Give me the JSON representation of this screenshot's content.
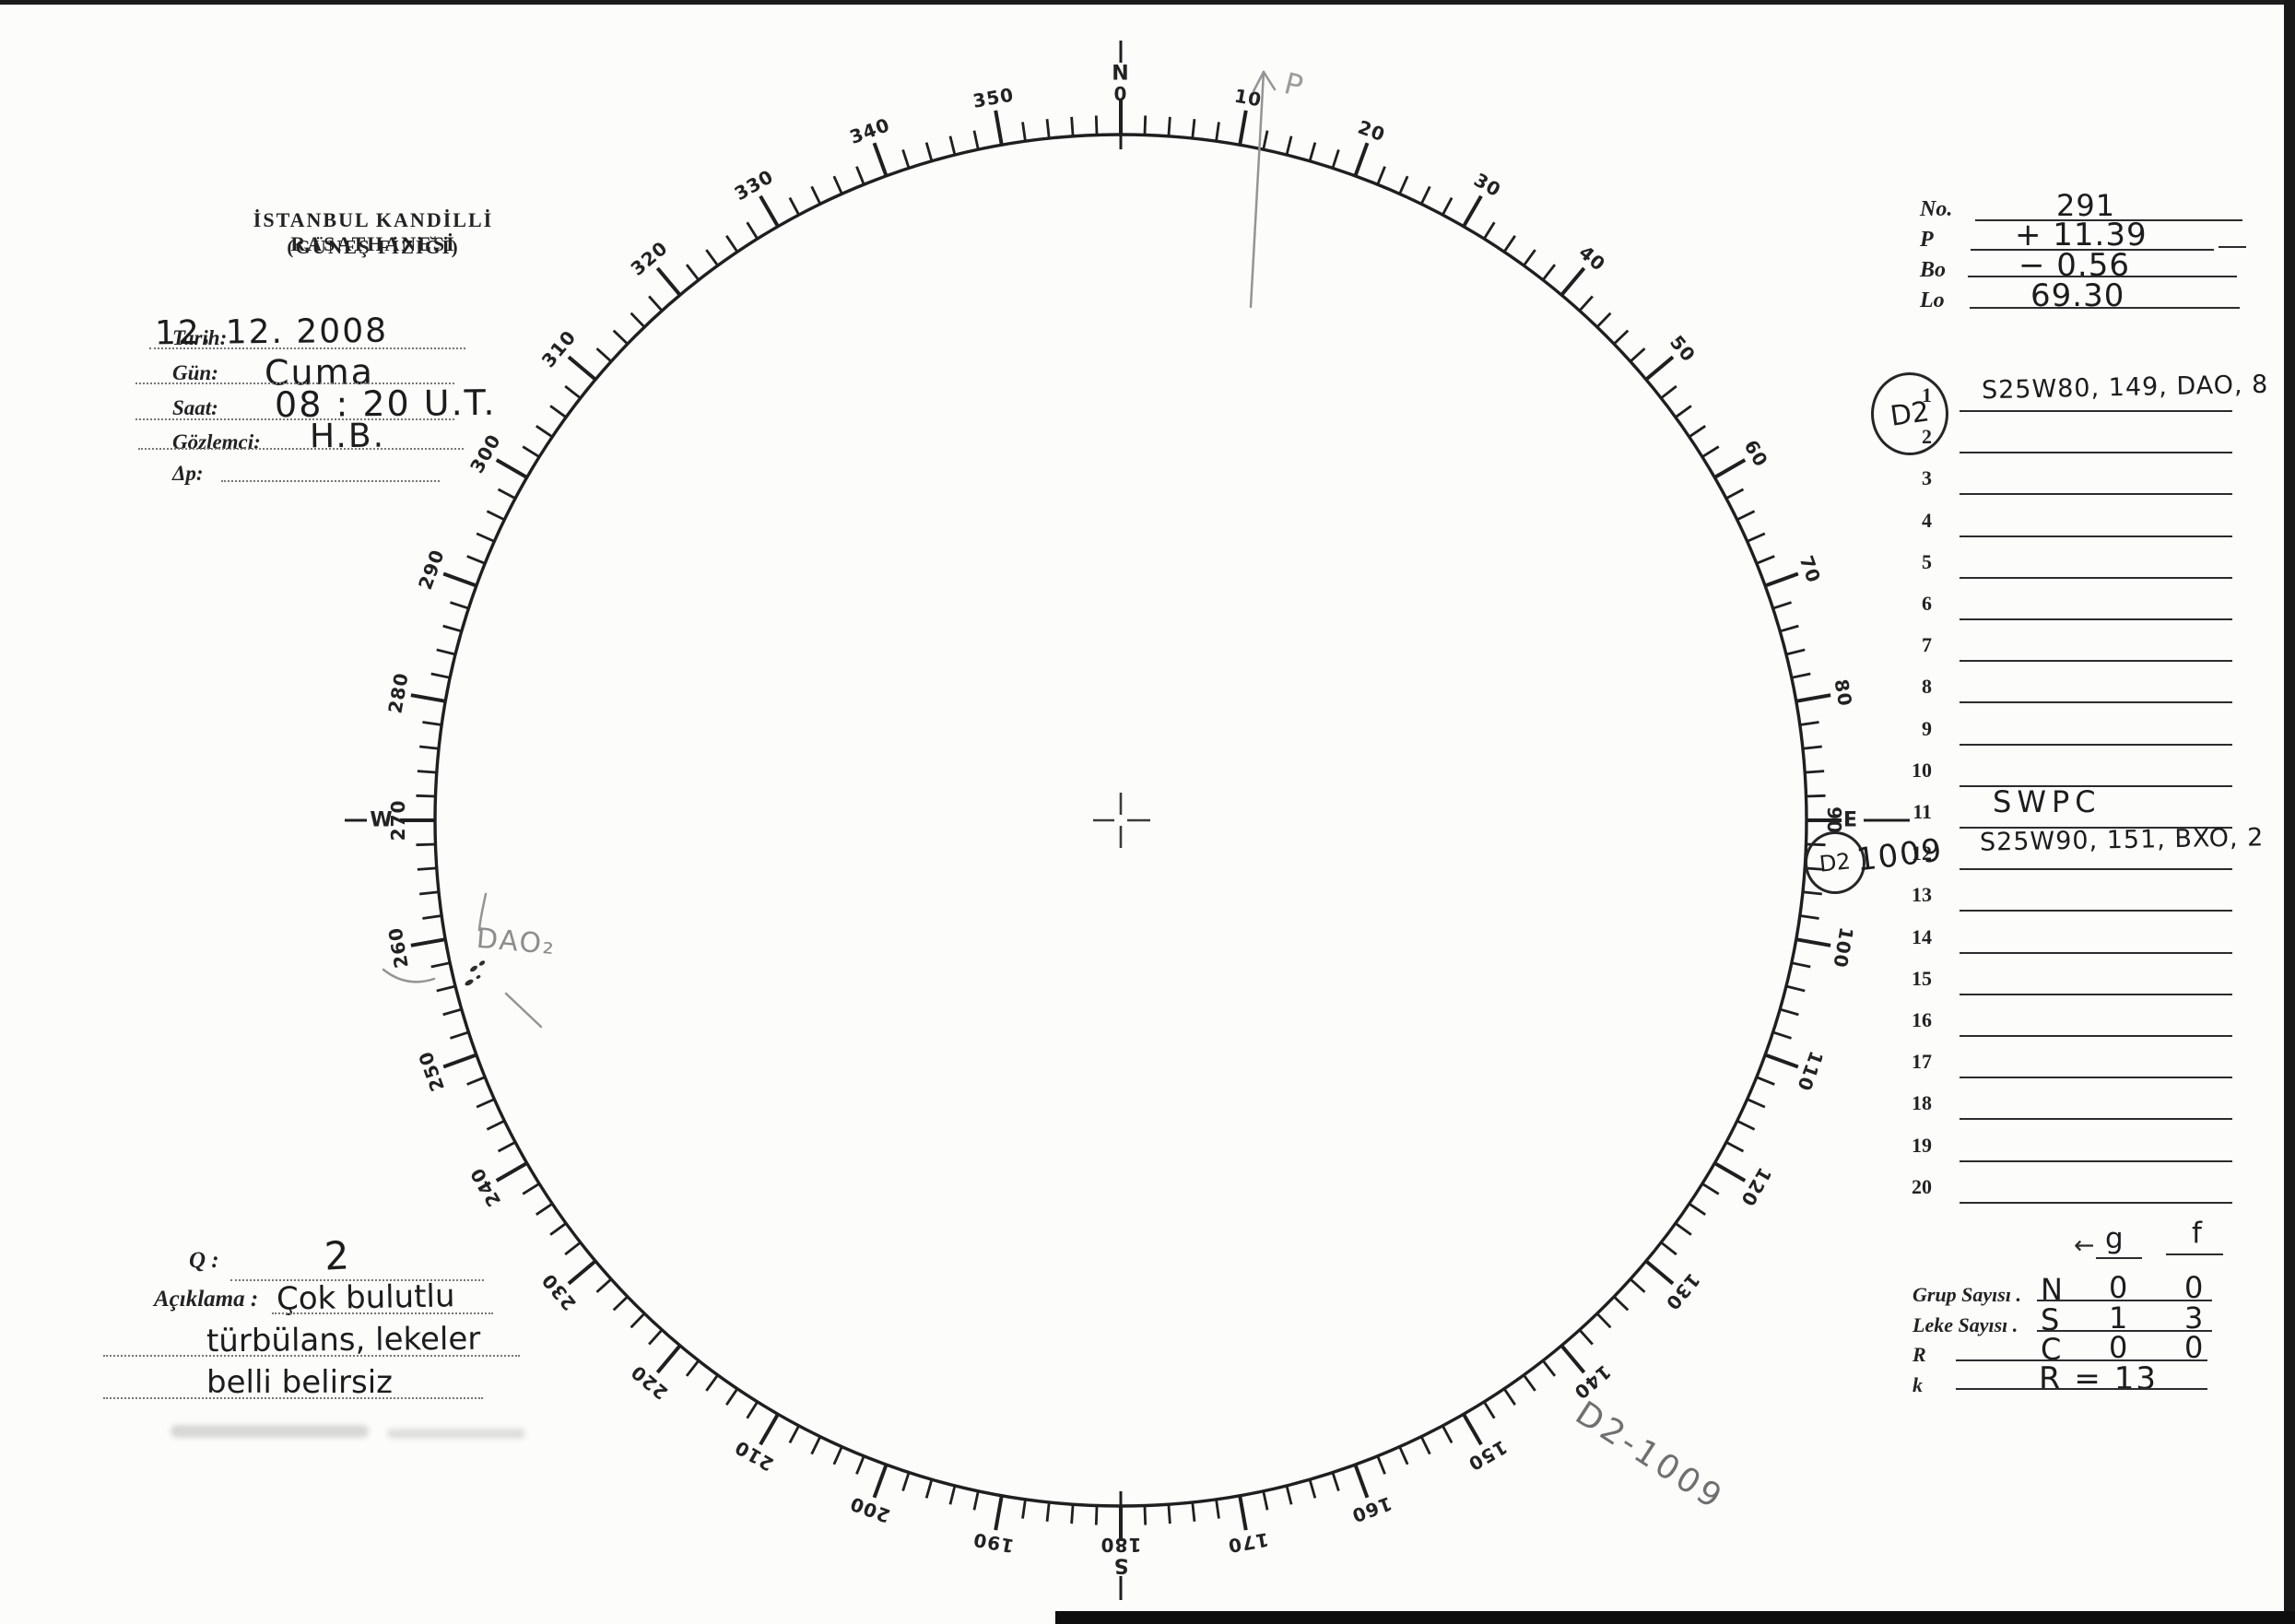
{
  "colors": {
    "paper": "#fcfcfa",
    "ink": "#1c1c1c",
    "print": "#222222",
    "pencil": "#8d8d8d"
  },
  "document": {
    "title_line1": "İSTANBUL KANDİLLİ RASATHANESİ",
    "title_line2": "(GÜNEŞ FİZİĞİ)"
  },
  "observation_fields": [
    {
      "label": "Tarih:",
      "value": "12. 12. 2008"
    },
    {
      "label": "Gün:",
      "value": "Cuma"
    },
    {
      "label": "Saat:",
      "value": "08 : 20  U.T."
    },
    {
      "label": "Gözlemci:",
      "value": "H.B."
    },
    {
      "label": "Δp:",
      "value": ""
    }
  ],
  "ephemeris": [
    {
      "label": "No.",
      "value": "291"
    },
    {
      "label": "P",
      "value": "+ 11.39"
    },
    {
      "label": "Bo",
      "value": "− 0.56"
    },
    {
      "label": "Lo",
      "value": "69.30"
    }
  ],
  "group_rows": [
    {
      "num": "1",
      "entry": "S25W80, 149, DAO, 8",
      "badge": "D2"
    },
    {
      "num": "2",
      "entry": ""
    },
    {
      "num": "3",
      "entry": ""
    },
    {
      "num": "4",
      "entry": ""
    },
    {
      "num": "5",
      "entry": ""
    },
    {
      "num": "6",
      "entry": ""
    },
    {
      "num": "7",
      "entry": ""
    },
    {
      "num": "8",
      "entry": ""
    },
    {
      "num": "9",
      "entry": ""
    },
    {
      "num": "10",
      "entry": ""
    },
    {
      "num": "11",
      "entry": "SWPC"
    },
    {
      "num": "12",
      "entry": "S25W90, 151, BXO, 2",
      "badge": "D2",
      "badge_note": "1009"
    },
    {
      "num": "13",
      "entry": ""
    },
    {
      "num": "14",
      "entry": ""
    },
    {
      "num": "15",
      "entry": ""
    },
    {
      "num": "16",
      "entry": ""
    },
    {
      "num": "17",
      "entry": ""
    },
    {
      "num": "18",
      "entry": ""
    },
    {
      "num": "19",
      "entry": ""
    },
    {
      "num": "20",
      "entry": ""
    }
  ],
  "summary": {
    "col_g": "g",
    "col_f": "f",
    "arrow": "←",
    "rows": [
      {
        "label": "Grup Sayısı .",
        "code": "N",
        "g": "0",
        "f": "0"
      },
      {
        "label": "Leke Sayısı .",
        "code": "S",
        "g": "1",
        "f": "3"
      },
      {
        "label": "R",
        "code": "C",
        "g": "0",
        "f": "0"
      },
      {
        "label": "k",
        "code": "",
        "g": "",
        "f": "",
        "note": "R = 13"
      }
    ]
  },
  "quality": {
    "label": "Q :",
    "value": "2"
  },
  "remarks": {
    "label": "Açıklama :",
    "lines": [
      "Çok bulutlu",
      "türbülans, lekeler",
      "belli belirsiz"
    ]
  },
  "dial": {
    "degree_labels": [
      "0",
      "10",
      "20",
      "30",
      "40",
      "50",
      "60",
      "70",
      "80",
      "90",
      "100",
      "110",
      "120",
      "130",
      "140",
      "150",
      "160",
      "170",
      "180",
      "190",
      "200",
      "210",
      "220",
      "230",
      "240",
      "250",
      "260",
      "270",
      "280",
      "290",
      "300",
      "310",
      "320",
      "330",
      "340",
      "350"
    ],
    "cardinals": {
      "north": "N",
      "east": "E",
      "south": "S",
      "west": "W"
    }
  },
  "annotations": {
    "limb_group_label": "DAO₂",
    "position_arrow_label": "P",
    "region_badge": "D2",
    "region_number": "1009",
    "corner_note": "D2-1009"
  }
}
